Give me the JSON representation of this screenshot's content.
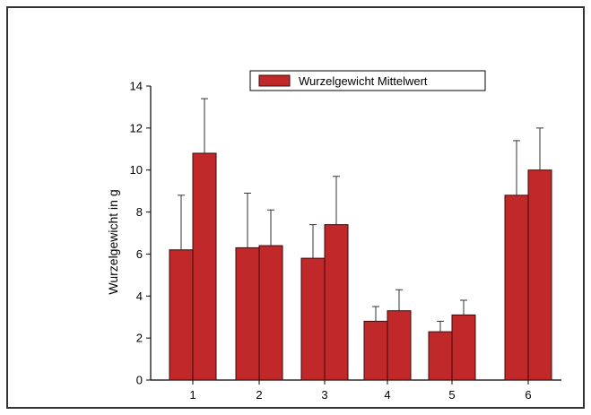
{
  "chart_data": {
    "type": "bar",
    "title": "",
    "xlabel": "",
    "ylabel": "Wurzelgewicht in g",
    "ylim": [
      0,
      14
    ],
    "yticks": [
      0,
      2,
      4,
      6,
      8,
      10,
      12,
      14
    ],
    "categories": [
      "1",
      "2",
      "3",
      "4",
      "5",
      "6"
    ],
    "series": [
      {
        "name": "Wurzelgewicht Mittelwert",
        "values": [
          6.2,
          6.3,
          5.8,
          2.8,
          2.3,
          8.8
        ],
        "error": [
          2.6,
          2.6,
          1.6,
          0.7,
          0.5,
          2.6
        ]
      },
      {
        "name": "",
        "values": [
          10.8,
          6.4,
          7.4,
          3.3,
          3.1,
          10.0
        ],
        "error": [
          2.6,
          1.7,
          2.3,
          1.0,
          0.7,
          2.0
        ]
      }
    ],
    "legend": {
      "label": "Wurzelgewicht Mittelwert",
      "placement": "top"
    },
    "colors": {
      "bar_fill": "#c0282a",
      "bar_stroke": "#3a0a0a",
      "frame": "#000000"
    },
    "grid": false
  }
}
